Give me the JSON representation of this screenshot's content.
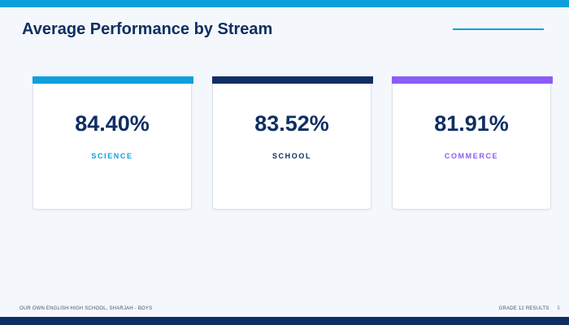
{
  "header": {
    "title": "Average Performance by Stream",
    "accent_color": "#0d9fdc"
  },
  "cards": [
    {
      "value": "84.40%",
      "label": "SCIENCE",
      "color": "#0d9fdc"
    },
    {
      "value": "83.52%",
      "label": "SCHOOL",
      "color": "#0f2f63"
    },
    {
      "value": "81.91%",
      "label": "COMMERCE",
      "color": "#8b5cf6"
    }
  ],
  "footer": {
    "left_text": "OUR OWN ENGLISH HIGH SCHOOL, SHARJAH - BOYS",
    "right_text": "GRADE 12 RESULTS",
    "page_number": "5",
    "bar_color": "#0f2f63"
  }
}
